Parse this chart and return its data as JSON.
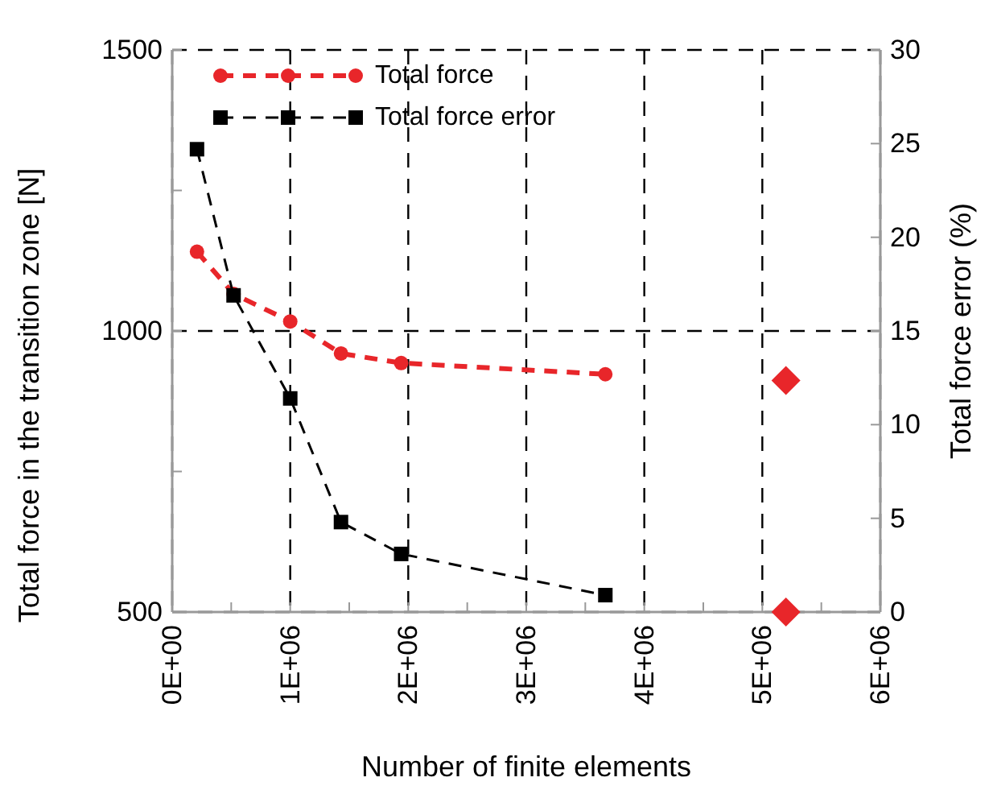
{
  "chart_data": {
    "type": "line",
    "xlabel": "Number of finite elements",
    "ylabel": "Total force in the transition zone [N]",
    "y2label": "Total force error (%)",
    "xlim": [
      0,
      6000000
    ],
    "xticks": [
      {
        "value": 0,
        "label": "0E+00"
      },
      {
        "value": 500000,
        "label": null
      },
      {
        "value": 1000000,
        "label": "1E+06"
      },
      {
        "value": 1500000,
        "label": null
      },
      {
        "value": 2000000,
        "label": "2E+06"
      },
      {
        "value": 2500000,
        "label": null
      },
      {
        "value": 3000000,
        "label": "3E+06"
      },
      {
        "value": 3500000,
        "label": null
      },
      {
        "value": 4000000,
        "label": "4E+06"
      },
      {
        "value": 4500000,
        "label": null
      },
      {
        "value": 5000000,
        "label": "5E+06"
      },
      {
        "value": 5500000,
        "label": null
      },
      {
        "value": 6000000,
        "label": "6E+06"
      }
    ],
    "ylim": [
      500,
      1500
    ],
    "yticks": [
      500,
      {
        "value": 750,
        "label": null
      },
      1000,
      {
        "value": 1250,
        "label": null
      },
      1500
    ],
    "y2lim": [
      0,
      30
    ],
    "y2ticks": [
      0,
      5,
      10,
      15,
      20,
      25,
      30
    ],
    "grid": true,
    "legend": "top left",
    "line_style": "dashed",
    "series": [
      {
        "name": "Total force",
        "color": "#e8262a",
        "marker": "circle",
        "x": [
          210000,
          520000,
          1000000,
          1430000,
          1940000,
          3670000
        ],
        "values": [
          1141,
          1066,
          1017,
          960,
          943,
          923
        ]
      },
      {
        "name": "Total force error",
        "color": "#000000",
        "marker": "square",
        "axis": "y2",
        "x": [
          210000,
          520000,
          1000000,
          1430000,
          1940000,
          3670000
        ],
        "values": [
          24.7,
          16.9,
          11.4,
          4.8,
          3.1,
          0.9
        ]
      },
      {
        "type": "scatter",
        "color": "#e8262a",
        "marker": "diamond",
        "x": [
          5200000
        ],
        "values": [
          912
        ]
      },
      {
        "type": "scatter",
        "color": "#e8262a",
        "marker": "diamond",
        "axis": "y2",
        "x": [
          5200000
        ],
        "values": [
          0
        ]
      }
    ]
  }
}
